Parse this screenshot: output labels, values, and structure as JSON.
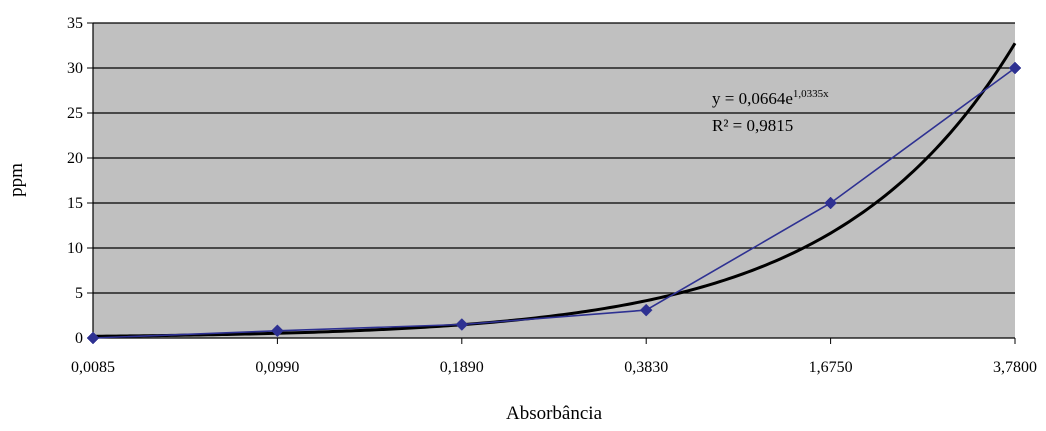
{
  "chart_data": {
    "type": "line",
    "xlabel": "Absorbância",
    "ylabel": "ppm",
    "categories": [
      "0,0085",
      "0,0990",
      "0,1890",
      "0,3830",
      "1,6750",
      "3,7800"
    ],
    "ylim": [
      0,
      35
    ],
    "yticks": [
      "0",
      "5",
      "10",
      "15",
      "20",
      "25",
      "30",
      "35"
    ],
    "grid": "horizontal",
    "series": [
      {
        "values": [
          0,
          0.8,
          1.5,
          3.1,
          15,
          30
        ],
        "color": "#2e3192",
        "marker": "diamond"
      }
    ],
    "trendline": {
      "type": "exponential",
      "a": 0.0664,
      "b": 1.0335,
      "color": "#000000",
      "equation_prefix": "y = 0,0664e",
      "equation_exponent": "1,0335x",
      "r2_text": "R² = 0,9815"
    },
    "plot_background": "#c0c0c0"
  }
}
